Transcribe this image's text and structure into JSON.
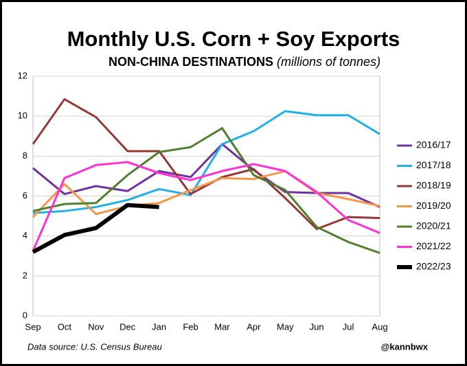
{
  "chart_data": {
    "type": "line",
    "title": "Monthly U.S. Corn + Soy Exports",
    "subtitle": "NON-CHINA DESTINATIONS",
    "subtitle_note": "(millions of tonnes)",
    "source": "Data source: U.S. Census Bureau",
    "credit": "@kannbwx",
    "categories": [
      "Sep",
      "Oct",
      "Nov",
      "Dec",
      "Jan",
      "Feb",
      "Mar",
      "Apr",
      "May",
      "Jun",
      "Jul",
      "Aug"
    ],
    "ylim": [
      0,
      12
    ],
    "yticks": [
      0,
      2,
      4,
      6,
      8,
      10,
      12
    ],
    "grid": true,
    "legend": "right",
    "series": [
      {
        "name": "2016/17",
        "color": "#7030a0",
        "values": [
          7.4,
          6.1,
          6.5,
          6.25,
          7.25,
          6.95,
          8.6,
          7.3,
          6.2,
          6.15,
          6.15,
          5.45
        ]
      },
      {
        "name": "2017/18",
        "color": "#1fb0e8",
        "values": [
          5.15,
          5.25,
          5.45,
          5.8,
          6.35,
          6.05,
          8.6,
          9.25,
          10.25,
          10.05,
          10.05,
          9.1
        ]
      },
      {
        "name": "2018/19",
        "color": "#953735",
        "values": [
          8.6,
          10.85,
          9.95,
          8.25,
          8.25,
          6.1,
          6.95,
          7.35,
          5.9,
          4.35,
          4.95,
          4.9
        ]
      },
      {
        "name": "2019/20",
        "color": "#f79646",
        "values": [
          4.95,
          6.6,
          5.1,
          5.5,
          5.65,
          6.3,
          6.9,
          6.85,
          7.25,
          6.15,
          5.85,
          5.5
        ]
      },
      {
        "name": "2020/21",
        "color": "#4f7f2a",
        "values": [
          5.25,
          5.6,
          5.65,
          7.05,
          8.2,
          8.45,
          9.4,
          7.05,
          6.3,
          4.45,
          3.7,
          3.15
        ]
      },
      {
        "name": "2021/22",
        "color": "#ff2fd6",
        "values": [
          3.25,
          6.9,
          7.55,
          7.7,
          7.15,
          6.8,
          7.25,
          7.6,
          7.25,
          6.2,
          4.8,
          4.15
        ]
      },
      {
        "name": "2022/23",
        "color": "#000000",
        "values": [
          3.2,
          4.05,
          4.4,
          5.55,
          5.45,
          null,
          null,
          null,
          null,
          null,
          null,
          null
        ]
      }
    ]
  }
}
